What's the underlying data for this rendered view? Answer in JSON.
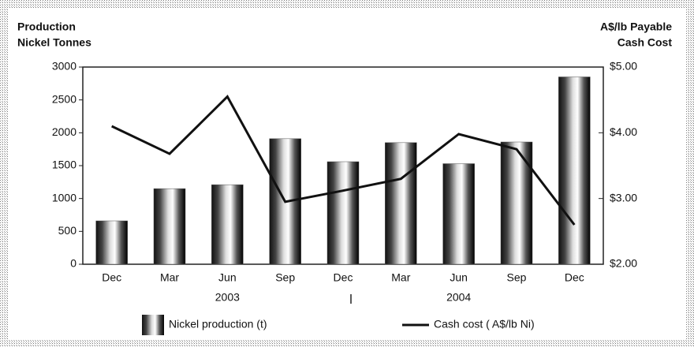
{
  "chart_data": {
    "type": "bar_line",
    "ylabel": [
      "Production",
      "Nickel Tonnes"
    ],
    "y2label": [
      "A$/lb Payable",
      "Cash Cost"
    ],
    "categories": [
      "Dec",
      "Mar",
      "Jun",
      "Sep",
      "Dec",
      "Mar",
      "Jun",
      "Sep",
      "Dec"
    ],
    "x_groups": [
      "2003",
      "2004"
    ],
    "series": [
      {
        "name": "Nickel production (t)",
        "type": "bar",
        "color": "#555555",
        "values": [
          660,
          1150,
          1210,
          1910,
          1560,
          1850,
          1530,
          1860,
          2850
        ]
      },
      {
        "name": "Cash cost ( A$/lb Ni)",
        "type": "line",
        "axis": "y2",
        "color": "#111111",
        "values": [
          4.1,
          3.68,
          4.55,
          2.95,
          3.12,
          3.3,
          3.98,
          3.75,
          2.6
        ]
      }
    ],
    "ylim": [
      0,
      3000
    ],
    "yticks": [
      0,
      500,
      1000,
      1500,
      2000,
      2500,
      3000
    ],
    "y2lim": [
      2,
      5
    ],
    "y2ticks": [
      {
        "value": 2,
        "label": "$2.00"
      },
      {
        "value": 3,
        "label": "$3.00"
      },
      {
        "value": 4,
        "label": "$4.00"
      },
      {
        "value": 5,
        "label": "$5.00"
      }
    ],
    "grid": false
  }
}
